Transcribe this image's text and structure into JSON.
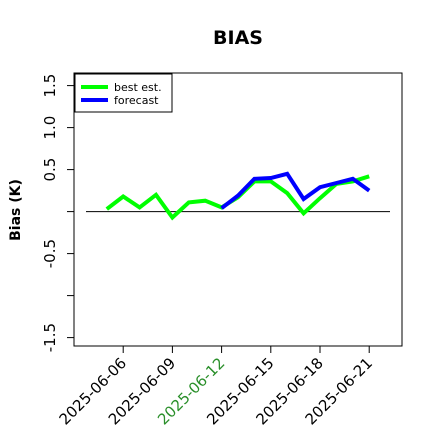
{
  "chart_data": {
    "type": "line",
    "title": "BIAS",
    "xlabel": "",
    "ylabel": "Bias (K)",
    "xlim": [
      "2025-06-03",
      "2025-06-23"
    ],
    "ylim": [
      -1.6,
      1.65
    ],
    "yticks": [
      -1.5,
      -1.0,
      -0.5,
      0.0,
      0.5,
      1.0,
      1.5
    ],
    "ytick_labels": [
      "-1.5",
      "",
      "-0.5",
      "",
      "0.5",
      "1.0",
      "1.5"
    ],
    "xticks": [
      "2025-06-06",
      "2025-06-09",
      "2025-06-12",
      "2025-06-15",
      "2025-06-18",
      "2025-06-21"
    ],
    "highlighted_xtick": "2025-06-12",
    "highlight_color": "#2a8f2a",
    "zero_line": true,
    "grid": false,
    "legend": {
      "position": "top-left",
      "entries": [
        "best est.",
        "forecast"
      ]
    },
    "series": [
      {
        "name": "best est.",
        "color": "#00ff00",
        "x": [
          "2025-06-05",
          "2025-06-06",
          "2025-06-07",
          "2025-06-08",
          "2025-06-09",
          "2025-06-10",
          "2025-06-11",
          "2025-06-12",
          "2025-06-13",
          "2025-06-14",
          "2025-06-15",
          "2025-06-16",
          "2025-06-17",
          "2025-06-18",
          "2025-06-19",
          "2025-06-20",
          "2025-06-21"
        ],
        "y": [
          0.03,
          0.18,
          0.05,
          0.2,
          -0.07,
          0.11,
          0.13,
          0.05,
          0.17,
          0.36,
          0.36,
          0.22,
          -0.02,
          0.16,
          0.33,
          0.36,
          0.42
        ]
      },
      {
        "name": "forecast",
        "color": "#0000ff",
        "x": [
          "2025-06-12",
          "2025-06-13",
          "2025-06-14",
          "2025-06-15",
          "2025-06-16",
          "2025-06-17",
          "2025-06-18",
          "2025-06-19",
          "2025-06-20",
          "2025-06-21"
        ],
        "y": [
          0.04,
          0.19,
          0.39,
          0.4,
          0.45,
          0.15,
          0.29,
          0.34,
          0.39,
          0.25
        ]
      }
    ]
  }
}
